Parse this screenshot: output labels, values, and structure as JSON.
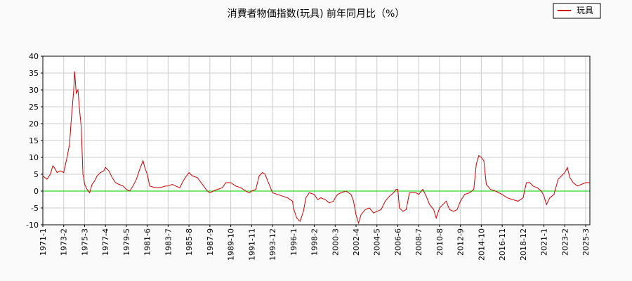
{
  "chart_data": {
    "type": "line",
    "title": "消費者物価指数(玩具) 前年同月比（%）",
    "xlabel": "",
    "ylabel": "",
    "ylim": [
      -10,
      40
    ],
    "xlim": [
      "1971-01",
      "2025-08"
    ],
    "yticks": [
      -10,
      -5,
      0,
      5,
      10,
      15,
      20,
      25,
      30,
      35,
      40
    ],
    "xticks": [
      "1971-1",
      "1973-2",
      "1975-3",
      "1977-4",
      "1979-5",
      "1981-6",
      "1983-7",
      "1985-8",
      "1987-9",
      "1989-10",
      "1991-11",
      "1993-12",
      "1996-1",
      "1998-2",
      "2000-3",
      "2002-4",
      "2004-5",
      "2006-6",
      "2008-7",
      "2010-8",
      "2012-9",
      "2014-10",
      "2016-11",
      "2018-12",
      "2021-1",
      "2023-2",
      "2025-3"
    ],
    "grid": true,
    "legend_position": "top-right",
    "zero_line_color": "#00cc00",
    "series": [
      {
        "name": "玩具",
        "color": "#cc0000",
        "points": [
          [
            "1971-01",
            4.5
          ],
          [
            "1971-06",
            3.5
          ],
          [
            "1971-10",
            5.0
          ],
          [
            "1972-01",
            7.5
          ],
          [
            "1972-04",
            6.5
          ],
          [
            "1972-06",
            5.5
          ],
          [
            "1972-10",
            6.0
          ],
          [
            "1973-02",
            5.5
          ],
          [
            "1973-06",
            10.0
          ],
          [
            "1973-09",
            14.0
          ],
          [
            "1973-11",
            21.0
          ],
          [
            "1974-02",
            30.0
          ],
          [
            "1974-03",
            35.5
          ],
          [
            "1974-05",
            29.0
          ],
          [
            "1974-07",
            30.0
          ],
          [
            "1974-09",
            24.0
          ],
          [
            "1974-11",
            19.0
          ],
          [
            "1975-01",
            5.0
          ],
          [
            "1975-03",
            2.0
          ],
          [
            "1975-06",
            0.5
          ],
          [
            "1975-09",
            -0.5
          ],
          [
            "1975-12",
            2.0
          ],
          [
            "1976-03",
            3.0
          ],
          [
            "1976-06",
            4.5
          ],
          [
            "1976-10",
            5.5
          ],
          [
            "1977-02",
            6.0
          ],
          [
            "1977-04",
            7.0
          ],
          [
            "1977-08",
            6.0
          ],
          [
            "1977-12",
            4.0
          ],
          [
            "1978-04",
            2.5
          ],
          [
            "1978-08",
            2.0
          ],
          [
            "1979-01",
            1.5
          ],
          [
            "1979-05",
            0.5
          ],
          [
            "1979-09",
            0.0
          ],
          [
            "1980-01",
            1.5
          ],
          [
            "1980-05",
            3.5
          ],
          [
            "1980-09",
            6.5
          ],
          [
            "1981-01",
            9.0
          ],
          [
            "1981-03",
            7.0
          ],
          [
            "1981-06",
            5.0
          ],
          [
            "1981-09",
            1.5
          ],
          [
            "1982-01",
            1.2
          ],
          [
            "1982-06",
            1.0
          ],
          [
            "1982-12",
            1.2
          ],
          [
            "1983-04",
            1.5
          ],
          [
            "1983-07",
            1.5
          ],
          [
            "1983-12",
            2.0
          ],
          [
            "1984-04",
            1.5
          ],
          [
            "1984-09",
            1.0
          ],
          [
            "1985-01",
            3.0
          ],
          [
            "1985-05",
            4.5
          ],
          [
            "1985-08",
            5.5
          ],
          [
            "1985-12",
            4.5
          ],
          [
            "1986-06",
            4.0
          ],
          [
            "1986-12",
            2.0
          ],
          [
            "1987-06",
            0.0
          ],
          [
            "1987-09",
            -0.5
          ],
          [
            "1988-01",
            0.0
          ],
          [
            "1988-06",
            0.5
          ],
          [
            "1988-12",
            1.0
          ],
          [
            "1989-04",
            2.5
          ],
          [
            "1989-10",
            2.5
          ],
          [
            "1990-04",
            1.5
          ],
          [
            "1990-10",
            1.0
          ],
          [
            "1991-04",
            0.0
          ],
          [
            "1991-08",
            -0.5
          ],
          [
            "1991-11",
            0.0
          ],
          [
            "1992-04",
            0.5
          ],
          [
            "1992-08",
            4.5
          ],
          [
            "1992-12",
            5.5
          ],
          [
            "1993-03",
            5.0
          ],
          [
            "1993-08",
            2.0
          ],
          [
            "1993-12",
            -0.5
          ],
          [
            "1994-06",
            -1.0
          ],
          [
            "1994-12",
            -1.5
          ],
          [
            "1995-06",
            -2.0
          ],
          [
            "1995-12",
            -3.0
          ],
          [
            "1996-01",
            -5.0
          ],
          [
            "1996-05",
            -8.0
          ],
          [
            "1996-09",
            -9.0
          ],
          [
            "1997-01",
            -6.0
          ],
          [
            "1997-04",
            -2.0
          ],
          [
            "1997-08",
            -0.5
          ],
          [
            "1998-02",
            -1.0
          ],
          [
            "1998-06",
            -2.5
          ],
          [
            "1998-10",
            -2.0
          ],
          [
            "1999-03",
            -2.5
          ],
          [
            "1999-08",
            -3.5
          ],
          [
            "2000-01",
            -3.0
          ],
          [
            "2000-03",
            -2.0
          ],
          [
            "2000-06",
            -1.0
          ],
          [
            "2000-10",
            -0.5
          ],
          [
            "2001-04",
            0.0
          ],
          [
            "2001-10",
            -1.0
          ],
          [
            "2002-01",
            -3.0
          ],
          [
            "2002-04",
            -7.0
          ],
          [
            "2002-07",
            -9.5
          ],
          [
            "2002-10",
            -7.0
          ],
          [
            "2003-03",
            -5.5
          ],
          [
            "2003-08",
            -5.0
          ],
          [
            "2004-01",
            -6.5
          ],
          [
            "2004-05",
            -6.0
          ],
          [
            "2004-10",
            -5.5
          ],
          [
            "2005-03",
            -3.0
          ],
          [
            "2005-08",
            -1.5
          ],
          [
            "2006-01",
            -0.5
          ],
          [
            "2006-04",
            0.5
          ],
          [
            "2006-06",
            0.5
          ],
          [
            "2006-08",
            -5.0
          ],
          [
            "2006-12",
            -6.0
          ],
          [
            "2007-04",
            -5.5
          ],
          [
            "2007-08",
            -0.5
          ],
          [
            "2007-12",
            -0.5
          ],
          [
            "2008-04",
            -0.5
          ],
          [
            "2008-07",
            -1.0
          ],
          [
            "2008-12",
            0.5
          ],
          [
            "2009-04",
            -1.5
          ],
          [
            "2009-08",
            -4.0
          ],
          [
            "2010-01",
            -5.5
          ],
          [
            "2010-04",
            -8.0
          ],
          [
            "2010-08",
            -5.0
          ],
          [
            "2010-12",
            -4.0
          ],
          [
            "2011-04",
            -3.0
          ],
          [
            "2011-08",
            -5.5
          ],
          [
            "2012-01",
            -6.0
          ],
          [
            "2012-05",
            -5.5
          ],
          [
            "2012-09",
            -3.0
          ],
          [
            "2013-02",
            -1.0
          ],
          [
            "2013-08",
            -0.5
          ],
          [
            "2014-01",
            0.5
          ],
          [
            "2014-04",
            8.0
          ],
          [
            "2014-07",
            10.5
          ],
          [
            "2014-10",
            10.0
          ],
          [
            "2015-01",
            9.0
          ],
          [
            "2015-04",
            2.0
          ],
          [
            "2015-09",
            0.5
          ],
          [
            "2016-03",
            0.0
          ],
          [
            "2016-11",
            -1.0
          ],
          [
            "2017-05",
            -2.0
          ],
          [
            "2017-11",
            -2.5
          ],
          [
            "2018-06",
            -3.0
          ],
          [
            "2018-12",
            -2.0
          ],
          [
            "2019-04",
            2.5
          ],
          [
            "2019-08",
            2.5
          ],
          [
            "2019-12",
            1.5
          ],
          [
            "2020-05",
            1.0
          ],
          [
            "2020-10",
            0.0
          ],
          [
            "2021-01",
            -1.5
          ],
          [
            "2021-04",
            -4.0
          ],
          [
            "2021-08",
            -2.0
          ],
          [
            "2022-01",
            -1.0
          ],
          [
            "2022-06",
            3.5
          ],
          [
            "2022-10",
            4.5
          ],
          [
            "2023-02",
            5.5
          ],
          [
            "2023-05",
            7.0
          ],
          [
            "2023-08",
            4.0
          ],
          [
            "2023-12",
            2.5
          ],
          [
            "2024-05",
            1.5
          ],
          [
            "2024-10",
            2.0
          ],
          [
            "2025-03",
            2.5
          ],
          [
            "2025-08",
            2.5
          ]
        ]
      }
    ]
  }
}
